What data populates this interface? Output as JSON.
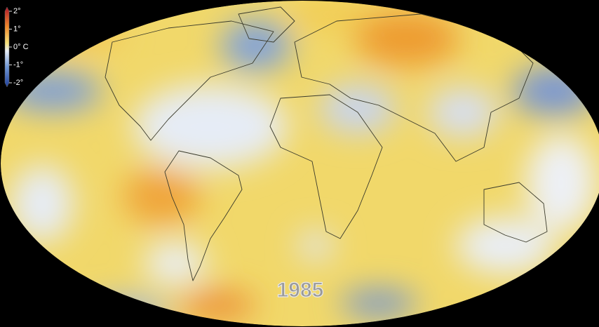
{
  "legend": {
    "ticks": [
      {
        "value": 2,
        "label": "2°"
      },
      {
        "value": 1,
        "label": "1°"
      },
      {
        "value": 0,
        "label": "0° C"
      },
      {
        "value": -1,
        "label": "-1°"
      },
      {
        "value": -2,
        "label": "-2°"
      }
    ]
  },
  "year": "1985"
}
